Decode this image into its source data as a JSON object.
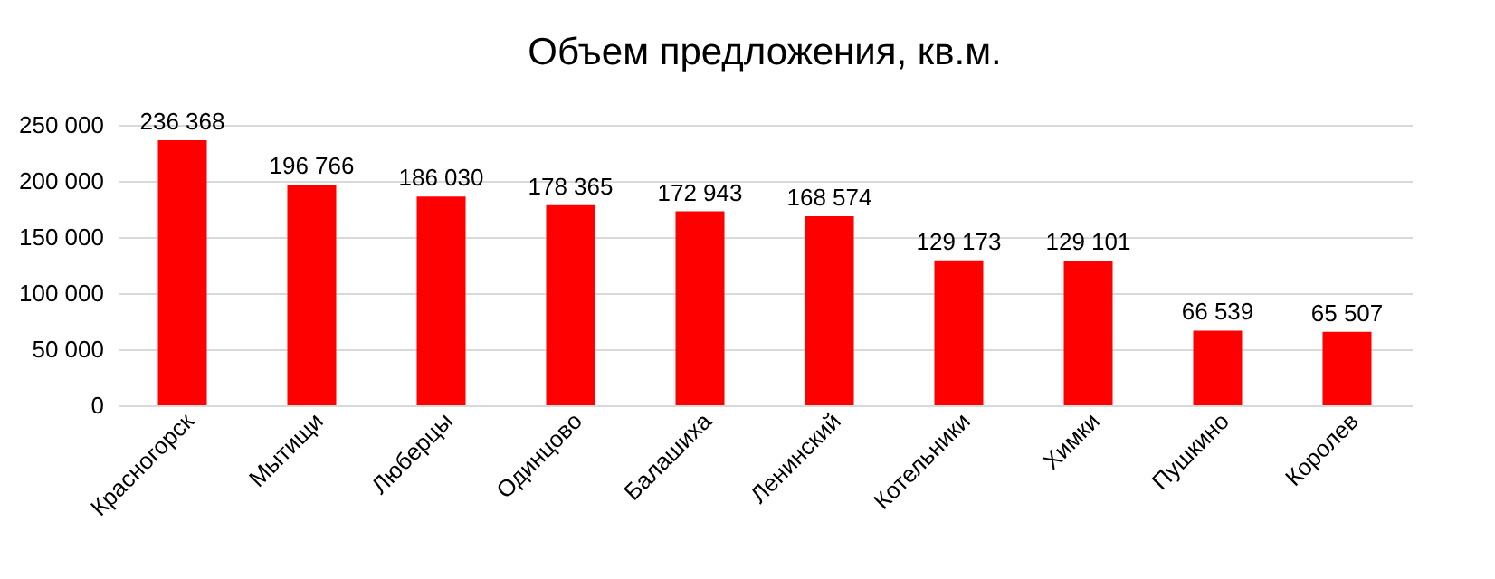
{
  "chart_data": {
    "type": "bar",
    "title": "Объем предложения, кв.м.",
    "categories": [
      "Красногорск",
      "Мытищи",
      "Люберцы",
      "Одинцово",
      "Балашиха",
      "Ленинский",
      "Котельники",
      "Химки",
      "Пушкино",
      "Королев"
    ],
    "values": [
      236368,
      196766,
      186030,
      178365,
      172943,
      168574,
      129173,
      129101,
      66539,
      65507
    ],
    "value_labels": [
      "236 368",
      "196 766",
      "186 030",
      "178 365",
      "172 943",
      "168 574",
      "129 173",
      "129 101",
      "66 539",
      "65 507"
    ],
    "color": "#ff0000",
    "ylim": [
      0,
      250000
    ],
    "yticks": [
      {
        "value": 0,
        "label": "0"
      },
      {
        "value": 50000,
        "label": "50 000"
      },
      {
        "value": 100000,
        "label": "100 000"
      },
      {
        "value": 150000,
        "label": "150 000"
      },
      {
        "value": 200000,
        "label": "200 000"
      },
      {
        "value": 250000,
        "label": "250 000"
      }
    ],
    "grid": "y"
  }
}
